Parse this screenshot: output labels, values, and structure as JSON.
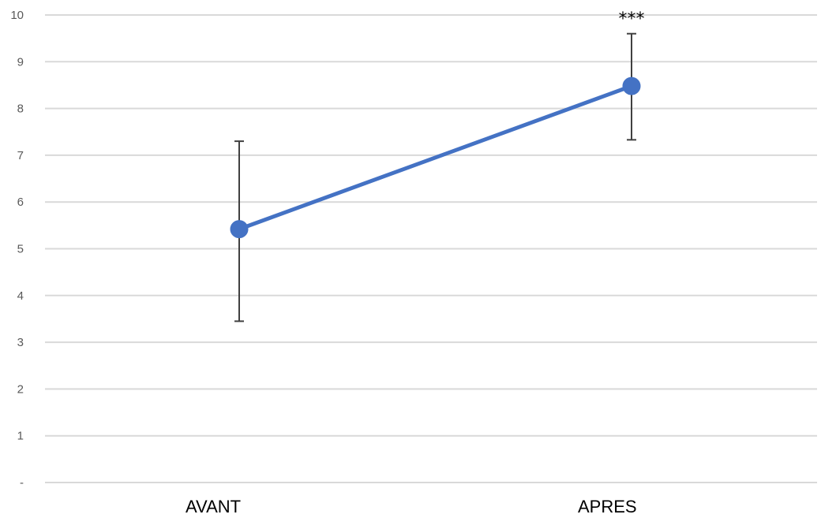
{
  "chart_data": {
    "type": "line",
    "categories": [
      "AVANT",
      "APRES"
    ],
    "series": [
      {
        "values": [
          5.42,
          8.48
        ],
        "error_low": [
          3.45,
          7.33
        ],
        "error_high": [
          7.3,
          9.6
        ]
      }
    ],
    "yticks": [
      "-",
      "1",
      "2",
      "3",
      "4",
      "5",
      "6",
      "7",
      "8",
      "9",
      "10"
    ],
    "ylim": [
      0,
      10
    ],
    "grid": true,
    "annotation": {
      "text": "***",
      "category": "APRES"
    },
    "colors": {
      "line": "#4472C4",
      "grid": "#D9D9D9",
      "errorbar": "#404040"
    }
  }
}
